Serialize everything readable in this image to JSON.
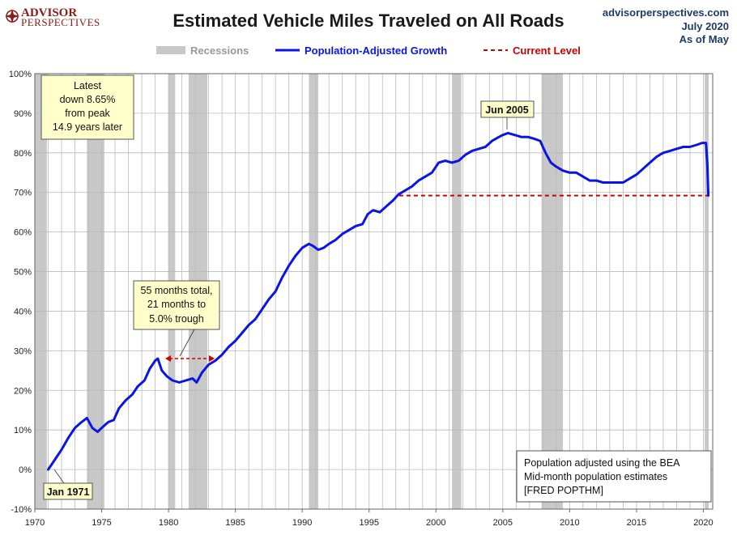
{
  "header": {
    "logo_line1": "ADVISOR",
    "logo_line2": "PERSPECTIVES",
    "title": "Estimated Vehicle Miles Traveled on All Roads",
    "source": "advisorperspectives.com",
    "date": "July 2020",
    "as_of": "As of May"
  },
  "legend": {
    "recessions": "Recessions",
    "series": "Population-Adjusted Growth",
    "current": "Current Level"
  },
  "annotations": {
    "latest": [
      "Latest",
      "down 8.65%",
      "from peak",
      "14.9 years later"
    ],
    "trough": [
      "55 months total,",
      "21 months to",
      "5.0% trough"
    ],
    "peak": "Jun 2005",
    "start": "Jan 1971",
    "note": [
      "Population adjusted using the BEA",
      "Mid-month population estimates",
      "[FRED POPTHM]"
    ]
  },
  "colors": {
    "series": "#0a14e6",
    "current": "#cc0000",
    "recession": "#c8c8c8",
    "grid": "#b9b9b9",
    "callout_bg": "#ffffcc",
    "logo": "#8b1a1a",
    "source_text": "#1f3a6b"
  },
  "chart_data": {
    "type": "line",
    "title": "Estimated Vehicle Miles Traveled on All Roads",
    "xlabel": "",
    "ylabel": "",
    "xlim": [
      1970,
      2020.7
    ],
    "ylim": [
      -10,
      100
    ],
    "x_ticks": [
      1970,
      1975,
      1980,
      1985,
      1990,
      1995,
      2000,
      2005,
      2010,
      2015,
      2020
    ],
    "y_ticks": [
      -10,
      0,
      10,
      20,
      30,
      40,
      50,
      60,
      70,
      80,
      90,
      100
    ],
    "y_tick_format": "percent",
    "grid": "vertical yearly and horizontal at each y tick",
    "legend_position": "top-center",
    "recessions": [
      [
        1970.0,
        1970.9
      ],
      [
        1973.9,
        1975.2
      ],
      [
        1980.0,
        1980.5
      ],
      [
        1981.5,
        1982.9
      ],
      [
        1990.5,
        1991.2
      ],
      [
        2001.2,
        2001.9
      ],
      [
        2007.9,
        2009.5
      ],
      [
        2020.1,
        2020.4
      ]
    ],
    "current_level": {
      "value": 69.2,
      "from": 1997.25,
      "to": 2020.35
    },
    "series": [
      {
        "name": "Population-Adjusted Growth",
        "points": [
          [
            1971.0,
            0.0
          ],
          [
            1971.5,
            2.5
          ],
          [
            1972.0,
            5.0
          ],
          [
            1972.5,
            8.0
          ],
          [
            1973.0,
            10.5
          ],
          [
            1973.5,
            12.0
          ],
          [
            1973.9,
            13.0
          ],
          [
            1974.3,
            10.5
          ],
          [
            1974.7,
            9.5
          ],
          [
            1975.0,
            10.5
          ],
          [
            1975.5,
            12.0
          ],
          [
            1975.9,
            12.5
          ],
          [
            1976.3,
            15.5
          ],
          [
            1976.8,
            17.5
          ],
          [
            1977.3,
            19.0
          ],
          [
            1977.7,
            21.0
          ],
          [
            1978.2,
            22.5
          ],
          [
            1978.6,
            25.5
          ],
          [
            1979.0,
            27.5
          ],
          [
            1979.2,
            28.0
          ],
          [
            1979.5,
            25.0
          ],
          [
            1979.9,
            23.5
          ],
          [
            1980.3,
            22.5
          ],
          [
            1980.8,
            22.0
          ],
          [
            1981.3,
            22.5
          ],
          [
            1981.8,
            23.0
          ],
          [
            1982.1,
            22.0
          ],
          [
            1982.5,
            24.5
          ],
          [
            1983.0,
            26.5
          ],
          [
            1983.5,
            27.5
          ],
          [
            1984.0,
            29.0
          ],
          [
            1984.5,
            31.0
          ],
          [
            1985.0,
            32.5
          ],
          [
            1985.5,
            34.5
          ],
          [
            1986.0,
            36.5
          ],
          [
            1986.5,
            38.0
          ],
          [
            1987.0,
            40.5
          ],
          [
            1987.5,
            43.0
          ],
          [
            1988.0,
            45.0
          ],
          [
            1988.5,
            48.5
          ],
          [
            1989.0,
            51.5
          ],
          [
            1989.5,
            54.0
          ],
          [
            1990.0,
            56.0
          ],
          [
            1990.5,
            57.0
          ],
          [
            1990.8,
            56.5
          ],
          [
            1991.2,
            55.5
          ],
          [
            1991.6,
            56.0
          ],
          [
            1992.0,
            57.0
          ],
          [
            1992.5,
            58.0
          ],
          [
            1993.0,
            59.5
          ],
          [
            1993.5,
            60.5
          ],
          [
            1994.0,
            61.5
          ],
          [
            1994.5,
            62.0
          ],
          [
            1994.9,
            64.5
          ],
          [
            1995.3,
            65.5
          ],
          [
            1995.8,
            65.0
          ],
          [
            1996.3,
            66.5
          ],
          [
            1996.8,
            68.0
          ],
          [
            1997.2,
            69.5
          ],
          [
            1997.7,
            70.5
          ],
          [
            1998.2,
            71.5
          ],
          [
            1998.7,
            73.0
          ],
          [
            1999.2,
            74.0
          ],
          [
            1999.7,
            75.0
          ],
          [
            2000.2,
            77.5
          ],
          [
            2000.7,
            78.0
          ],
          [
            2001.2,
            77.5
          ],
          [
            2001.7,
            78.0
          ],
          [
            2002.2,
            79.5
          ],
          [
            2002.7,
            80.5
          ],
          [
            2003.2,
            81.0
          ],
          [
            2003.7,
            81.5
          ],
          [
            2004.2,
            83.0
          ],
          [
            2004.7,
            84.0
          ],
          [
            2005.0,
            84.5
          ],
          [
            2005.4,
            85.0
          ],
          [
            2005.9,
            84.5
          ],
          [
            2006.4,
            84.0
          ],
          [
            2006.9,
            84.0
          ],
          [
            2007.4,
            83.5
          ],
          [
            2007.8,
            83.0
          ],
          [
            2008.2,
            80.0
          ],
          [
            2008.6,
            77.5
          ],
          [
            2009.0,
            76.5
          ],
          [
            2009.5,
            75.5
          ],
          [
            2010.0,
            75.0
          ],
          [
            2010.5,
            75.0
          ],
          [
            2011.0,
            74.0
          ],
          [
            2011.5,
            73.0
          ],
          [
            2012.0,
            73.0
          ],
          [
            2012.5,
            72.5
          ],
          [
            2013.0,
            72.5
          ],
          [
            2013.5,
            72.5
          ],
          [
            2014.0,
            72.5
          ],
          [
            2014.5,
            73.5
          ],
          [
            2015.0,
            74.5
          ],
          [
            2015.5,
            76.0
          ],
          [
            2016.0,
            77.5
          ],
          [
            2016.5,
            79.0
          ],
          [
            2017.0,
            80.0
          ],
          [
            2017.5,
            80.5
          ],
          [
            2018.0,
            81.0
          ],
          [
            2018.5,
            81.5
          ],
          [
            2019.0,
            81.5
          ],
          [
            2019.5,
            82.0
          ],
          [
            2019.9,
            82.5
          ],
          [
            2020.2,
            82.5
          ],
          [
            2020.3,
            77.0
          ],
          [
            2020.37,
            69.2
          ]
        ]
      }
    ]
  }
}
